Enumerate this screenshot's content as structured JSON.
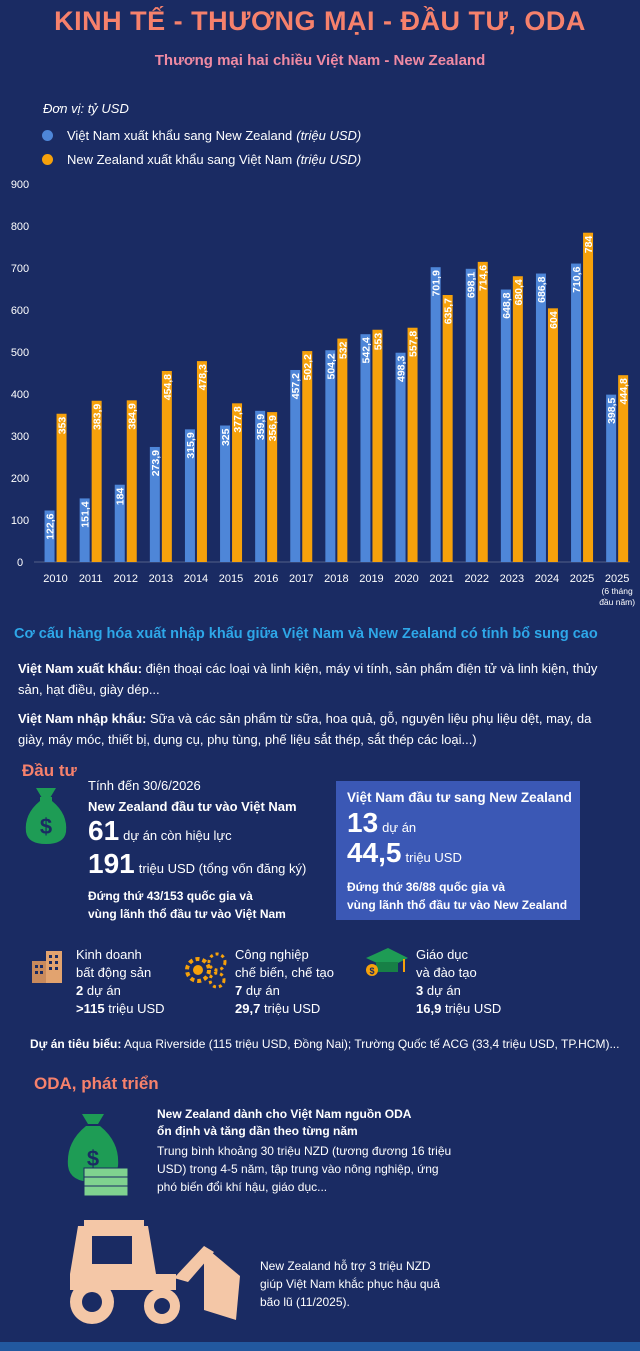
{
  "header": {
    "title": "KINH TẾ - THƯƠNG MẠI - ĐẦU TƯ, ODA",
    "subtitle": "Thương mại hai chiều Việt Nam - New Zealand"
  },
  "colors": {
    "vn": "#4e86d8",
    "nz": "#f6a10b",
    "background": "#1a2b63",
    "accent": "#f6816c",
    "section": "#2ea7e8"
  },
  "chart_data": {
    "type": "bar",
    "unit_note": "Đơn vị: tỷ USD",
    "categories": [
      "2010",
      "2011",
      "2012",
      "2013",
      "2014",
      "2015",
      "2016",
      "2017",
      "2018",
      "2019",
      "2020",
      "2021",
      "2022",
      "2023",
      "2024",
      "2025",
      "2025"
    ],
    "category_notes": [
      "",
      "",
      "",
      "",
      "",
      "",
      "",
      "",
      "",
      "",
      "",
      "",
      "",
      "",
      "",
      "",
      "(6 tháng\nđầu năm)"
    ],
    "series": [
      {
        "name": "Việt Nam xuất khẩu sang  New Zealand",
        "unit": "(triệu USD)",
        "color": "#4e86d8",
        "values": [
          122.6,
          151.4,
          184,
          273.9,
          315.9,
          325,
          359.9,
          457.2,
          504.2,
          542.4,
          498.3,
          701.9,
          698.1,
          648.8,
          686.8,
          710.6,
          398.5
        ],
        "labels": [
          "122,6",
          "151,4",
          "184",
          "273,9",
          "315,9",
          "325",
          "359,9",
          "457,2",
          "504,2",
          "542,4",
          "498,3",
          "701,9",
          "698,1",
          "648,8",
          "686,8",
          "710,6",
          "398,5"
        ]
      },
      {
        "name": "New Zealand xuất khẩu sang Việt Nam",
        "unit": "(triệu USD)",
        "color": "#f6a10b",
        "values": [
          353,
          383.9,
          384.9,
          454.8,
          478.3,
          377.8,
          356.9,
          502.2,
          532,
          553,
          557.8,
          635.7,
          714.6,
          680.4,
          604,
          784,
          444.8
        ],
        "labels": [
          "353",
          "383,9",
          "384,9",
          "454,8",
          "478,3",
          "377,8",
          "356,9",
          "502,2",
          "532",
          "553",
          "557,8",
          "635,7",
          "714,6",
          "680,4",
          "604",
          "784",
          "444,8"
        ]
      }
    ],
    "y_ticks": [
      0,
      100,
      200,
      300,
      400,
      500,
      600,
      700,
      800,
      900
    ],
    "ylim": [
      0,
      900
    ],
    "grid": false,
    "legend": "top-left"
  },
  "structure": {
    "heading": "Cơ cấu hàng hóa xuất nhập khẩu giữa Việt Nam và New Zealand có tính bổ sung cao",
    "export_label": "Việt Nam xuất khẩu:",
    "export_text": " điện thoại các loại và linh kiện, máy vi tính, sản phẩm điện tử và linh kiện, thủy sản, hạt điều, giày dép...",
    "import_label": "Việt Nam nhập khẩu:",
    "import_text": " Sữa và các sản phẩm từ sữa, hoa quả, gỗ, nguyên liệu phụ liệu dệt, may, da giày, máy móc, thiết bị, dụng cụ, phụ tùng, phế liệu sắt thép, sắt thép các loại...)"
  },
  "investment": {
    "heading": "Đầu tư",
    "as_of": "Tính đến 30/6/2026",
    "nz_title": "New Zealand đầu tư vào Việt Nam",
    "projects_num": "61",
    "projects_text": "dự án còn hiệu lực",
    "capital_num": "191",
    "capital_text": "triệu USD (tổng vốn đăng ký)",
    "rank_line1": "Đứng thứ 43/153 quốc gia và",
    "rank_line2": "vùng lãnh thổ đầu tư vào Việt Nam",
    "vn_title": "Việt Nam đầu tư sang New Zealand",
    "vn_projects_num": "13",
    "vn_projects_text": "dự án",
    "vn_capital_num": "44,5",
    "vn_capital_text": "triệu USD",
    "vn_rank_line1": "Đứng thứ 36/88 quốc gia và",
    "vn_rank_line2": "vùng lãnh thổ đầu tư vào New Zealand"
  },
  "sectors": [
    {
      "icon": "building-icon",
      "line1": "Kinh doanh",
      "line2": "bất động sản",
      "count": "2",
      "count_text": "dự án",
      "amount": ">115",
      "amount_text": "triệu USD"
    },
    {
      "icon": "gears-worker-icon",
      "line1": "Công nghiệp",
      "line2": "chế biến, chế tạo",
      "count": "7",
      "count_text": "dự án",
      "amount": "29,7",
      "amount_text": "triệu USD"
    },
    {
      "icon": "graduation-cap-icon",
      "line1": "Giáo dục",
      "line2": "và đào tạo",
      "count": "3",
      "count_text": "dự án",
      "amount": "16,9",
      "amount_text": "triệu USD"
    }
  ],
  "example_projects": {
    "label": "Dự án tiêu biểu:",
    "text": " Aqua Riverside (115 triệu USD, Đồng Nai); Trường Quốc tế ACG (33,4 triệu USD, TP.HCM)..."
  },
  "oda": {
    "heading": "ODA, phát triển",
    "bold_line1": "New Zealand dành cho Việt Nam nguồn ODA",
    "bold_line2": "ổn định và tăng dần theo từng năm",
    "text_line1": "Trung bình khoảng 30 triệu NZD (tương đương 16 triệu",
    "text_line2": "USD) trong 4-5 năm, tập trung vào nông nghiệp, ứng",
    "text_line3": "phó biến đổi khí hậu, giáo dục...",
    "flood_line1": "New Zealand hỗ trợ 3 triệu NZD",
    "flood_line2": "giúp Việt Nam khắc phục hậu quả",
    "flood_line3": "bão lũ (11/2025)."
  }
}
